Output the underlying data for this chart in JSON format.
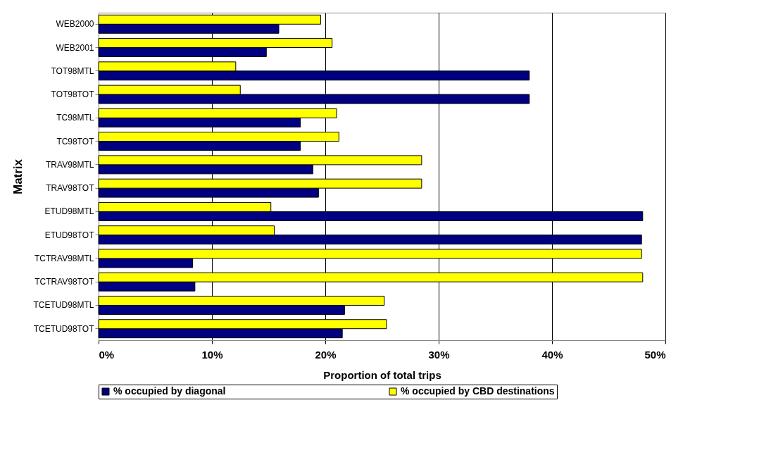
{
  "chart_data": {
    "type": "bar",
    "orientation": "horizontal",
    "xlabel": "Proportion of total trips",
    "ylabel": "Matrix",
    "categories": [
      "WEB2000",
      "WEB2001",
      "TOT98MTL",
      "TOT98TOT",
      "TC98MTL",
      "TC98TOT",
      "TRAV98MTL",
      "TRAV98TOT",
      "ETUD98MTL",
      "ETUD98TOT",
      "TCTRAV98MTL",
      "TCTRAV98TOT",
      "TCETUD98MTL",
      "TCETUD98TOT"
    ],
    "series": [
      {
        "name": "% occupied by diagonal",
        "color": "#000080",
        "values": [
          15.9,
          14.8,
          38.0,
          38.0,
          17.8,
          17.8,
          18.9,
          19.4,
          48.0,
          47.9,
          8.3,
          8.5,
          21.7,
          21.5
        ]
      },
      {
        "name": "% occupied by CBD destinations",
        "color": "#ffff00",
        "values": [
          19.6,
          20.6,
          12.1,
          12.5,
          21.0,
          21.2,
          28.5,
          28.5,
          15.2,
          15.5,
          47.9,
          48.0,
          25.2,
          25.4
        ]
      }
    ],
    "xlim": [
      0,
      50
    ],
    "xticks": [
      {
        "value": 0,
        "label": "0%"
      },
      {
        "value": 10,
        "label": "10%"
      },
      {
        "value": 20,
        "label": "20%"
      },
      {
        "value": 30,
        "label": "30%"
      },
      {
        "value": 40,
        "label": "40%"
      },
      {
        "value": 50,
        "label": "50%"
      }
    ],
    "grid": "x",
    "legend": "bottom"
  }
}
